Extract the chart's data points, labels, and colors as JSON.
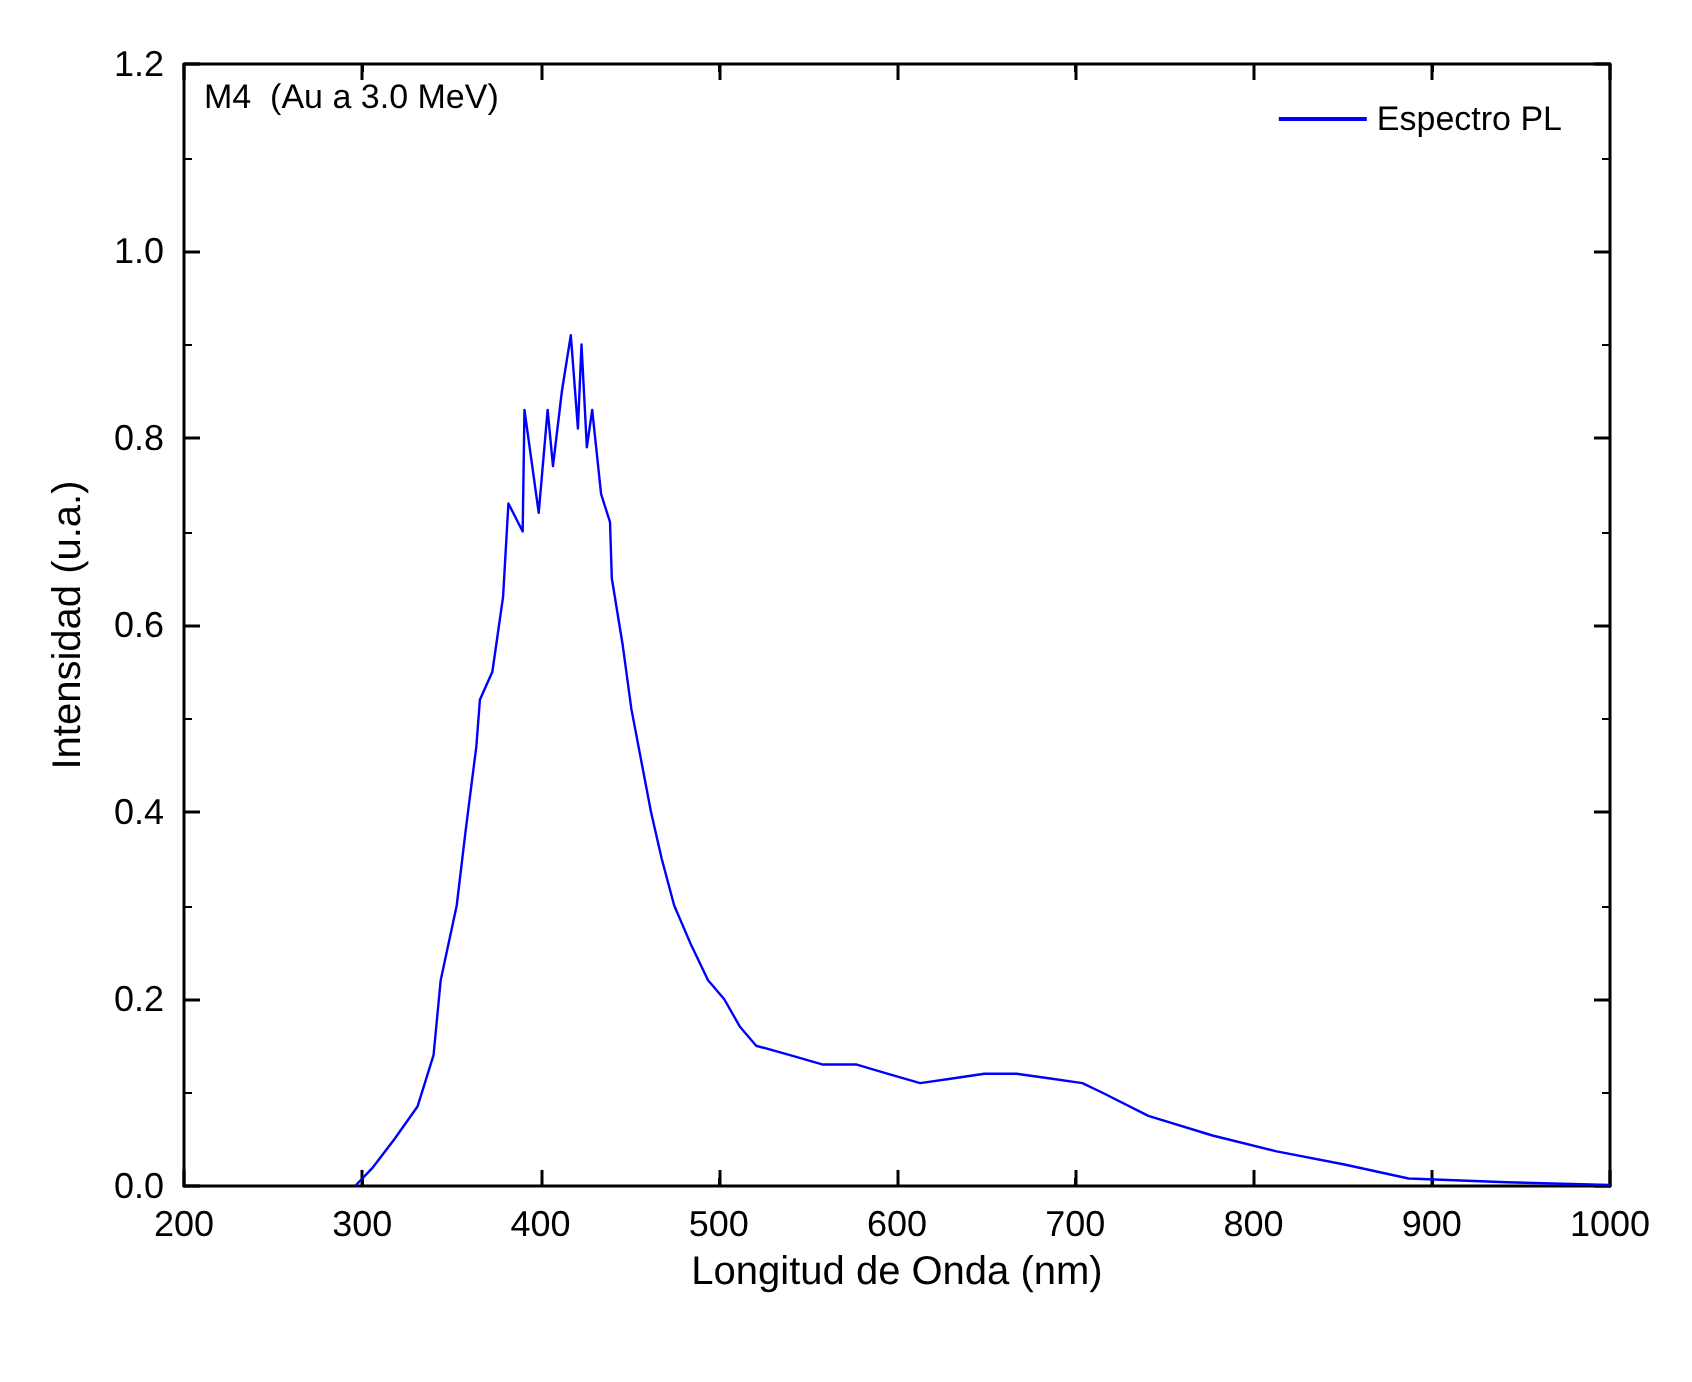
{
  "chart_data": {
    "type": "line",
    "xlabel": "Longitud de Onda (nm)",
    "ylabel": "Intensidad (u.a.)",
    "annotations": [
      "M4  (Au a 3.0 MeV)"
    ],
    "xlim": [
      200,
      1000
    ],
    "xticks": [
      200,
      300,
      400,
      500,
      600,
      700,
      800,
      900,
      1000
    ],
    "ylim": [
      0,
      1.2
    ],
    "yticks": [
      {
        "value": 0,
        "label": "0.0"
      },
      0.2,
      0.4,
      0.6,
      0.8,
      {
        "value": 1,
        "label": "1.0"
      },
      1.2
    ],
    "grid": false,
    "legend": "top right",
    "marker": "none",
    "line_style": "solid",
    "series": [
      {
        "name": "Espectro PL",
        "color": "#0000ff",
        "x": [
          296,
          306,
          318,
          331,
          340,
          344,
          353,
          358,
          364,
          366,
          373,
          379,
          382,
          390,
          391,
          399,
          404,
          407,
          412,
          417,
          421,
          423,
          426,
          429,
          434,
          439,
          440,
          446,
          451,
          457,
          462,
          468,
          475,
          484,
          494,
          503,
          512,
          521,
          540,
          558,
          577,
          595,
          613,
          631,
          649,
          667,
          686,
          704,
          715,
          741,
          777,
          813,
          851,
          887,
          942,
          1000
        ],
        "values": [
          0.0,
          0.02,
          0.05,
          0.085,
          0.14,
          0.22,
          0.3,
          0.38,
          0.47,
          0.52,
          0.55,
          0.63,
          0.73,
          0.7,
          0.83,
          0.72,
          0.83,
          0.77,
          0.85,
          0.91,
          0.81,
          0.9,
          0.79,
          0.83,
          0.74,
          0.71,
          0.65,
          0.58,
          0.51,
          0.45,
          0.4,
          0.35,
          0.3,
          0.26,
          0.22,
          0.2,
          0.17,
          0.15,
          0.14,
          0.13,
          0.13,
          0.12,
          0.11,
          0.115,
          0.12,
          0.12,
          0.115,
          0.11,
          0.1,
          0.075,
          0.054,
          0.037,
          0.023,
          0.008,
          0.004,
          0.001
        ]
      }
    ]
  }
}
